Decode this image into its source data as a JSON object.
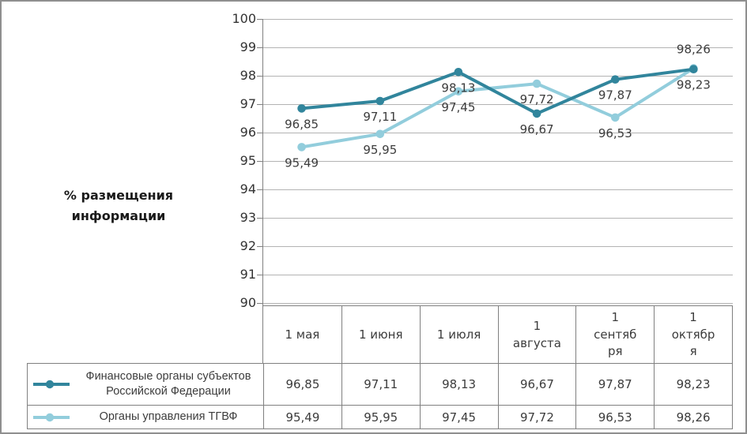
{
  "chart_data": {
    "type": "line",
    "title": "",
    "ylabel": "% размещения информации",
    "categories": [
      "1 мая",
      "1 июня",
      "1 июля",
      "1 августа",
      "1 сентября",
      "1 октября"
    ],
    "series": [
      {
        "name": "Финансовые органы субъектов Российской Федерации",
        "color": "#31859C",
        "values": [
          96.85,
          97.11,
          98.13,
          96.67,
          97.87,
          98.23
        ],
        "labels": [
          "96,85",
          "97,11",
          "98,13",
          "96,67",
          "97,87",
          "98,23"
        ],
        "label_positions": [
          "below",
          "below",
          "below",
          "below",
          "below",
          "below"
        ]
      },
      {
        "name": "Органы управления ТГВФ",
        "color": "#92CDDC",
        "values": [
          95.49,
          95.95,
          97.45,
          97.72,
          96.53,
          98.26
        ],
        "labels": [
          "95,49",
          "95,95",
          "97,45",
          "97,72",
          "96,53",
          "98,26"
        ],
        "label_positions": [
          "below",
          "below",
          "below",
          "below",
          "below",
          "above"
        ]
      }
    ],
    "ylim": [
      90,
      100
    ],
    "ytick_step": 1,
    "grid": true,
    "legend_position": "bottom table left column"
  },
  "yticks": [
    "100",
    "99",
    "98",
    "97",
    "96",
    "95",
    "94",
    "93",
    "92",
    "91",
    "90"
  ],
  "table": {
    "headers": [
      "1 мая",
      "1 июня",
      "1 июля",
      "1 августа",
      "1 сентября",
      "1 октября"
    ],
    "rows": [
      {
        "legend": "Финансовые органы субъектов Российской Федерации",
        "values": [
          "96,85",
          "97,11",
          "98,13",
          "96,67",
          "97,87",
          "98,23"
        ]
      },
      {
        "legend": "Органы управления ТГВФ",
        "values": [
          "95,49",
          "95,95",
          "97,45",
          "97,72",
          "96,53",
          "98,26"
        ]
      }
    ]
  },
  "colors": {
    "series1": "#31859C",
    "series2": "#92CDDC",
    "grid": "#b3b3b3",
    "axis": "#808080",
    "table_border": "#808080",
    "text": "#3c3c3c",
    "frame_border": "#8f8f8f"
  }
}
